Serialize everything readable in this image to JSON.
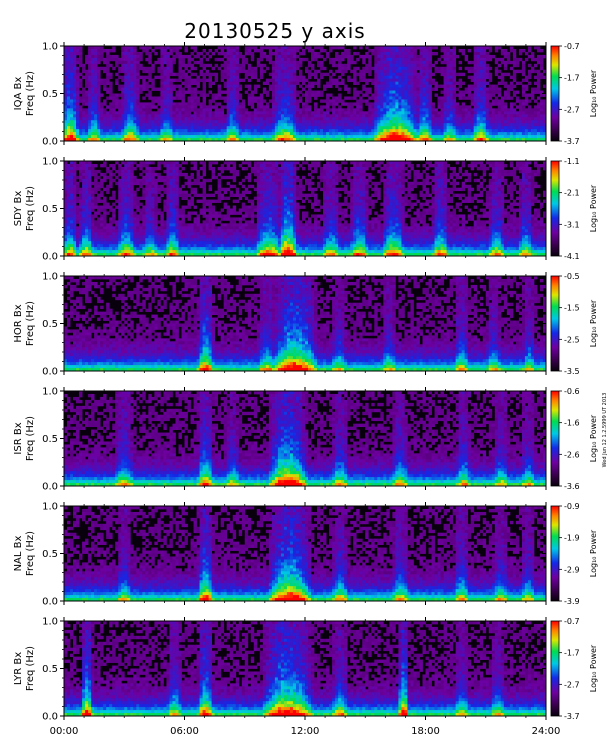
{
  "chart_data": {
    "type": "heatmap",
    "title": "20130525 y axis",
    "xlabel": "",
    "x_ticks": [
      "00:00",
      "06:00",
      "12:00",
      "18:00",
      "24:00"
    ],
    "x_range_hours": [
      0,
      24
    ],
    "freq_range_hz": [
      0.0,
      1.0
    ],
    "y_ticks": [
      "0.0",
      "0.5",
      "1.0"
    ],
    "colorbar_label": "Log₁₀ Power",
    "colormap": "rainbow (black-purple-blue-cyan-green-yellow-red)",
    "side_note": "Wed Jun 12 1.2.5999 UT 2013",
    "panels": [
      {
        "station": "IQA",
        "ylabel_1": "IQA Bx",
        "ylabel_2": "Freq (Hz)",
        "colorbar_ticks": [
          "-0.7",
          "-1.7",
          "-2.7",
          "-3.7"
        ],
        "active_intervals": [
          {
            "start": 0.0,
            "end": 0.6,
            "peak": 0.9
          },
          {
            "start": 1.3,
            "end": 1.7,
            "peak": 0.5
          },
          {
            "start": 3.0,
            "end": 3.6,
            "peak": 0.6
          },
          {
            "start": 4.9,
            "end": 5.3,
            "peak": 0.4
          },
          {
            "start": 8.2,
            "end": 8.6,
            "peak": 0.5
          },
          {
            "start": 10.5,
            "end": 11.5,
            "peak": 0.6
          },
          {
            "start": 15.5,
            "end": 17.5,
            "peak": 1.0
          },
          {
            "start": 17.7,
            "end": 18.2,
            "peak": 0.6
          },
          {
            "start": 19.0,
            "end": 19.4,
            "peak": 0.4
          },
          {
            "start": 20.5,
            "end": 21.0,
            "peak": 0.6
          }
        ]
      },
      {
        "station": "SDY",
        "ylabel_1": "SDY Bx",
        "ylabel_2": "Freq (Hz)",
        "colorbar_ticks": [
          "-1.1",
          "-2.1",
          "-3.1",
          "-4.1"
        ],
        "active_intervals": [
          {
            "start": 0.1,
            "end": 0.5,
            "peak": 0.6
          },
          {
            "start": 0.9,
            "end": 1.3,
            "peak": 0.6
          },
          {
            "start": 2.8,
            "end": 3.4,
            "peak": 0.6
          },
          {
            "start": 4.1,
            "end": 4.5,
            "peak": 0.4
          },
          {
            "start": 5.2,
            "end": 5.6,
            "peak": 0.6
          },
          {
            "start": 9.7,
            "end": 10.7,
            "peak": 0.7
          },
          {
            "start": 10.8,
            "end": 11.5,
            "peak": 1.0
          },
          {
            "start": 13.0,
            "end": 13.6,
            "peak": 0.5
          },
          {
            "start": 14.4,
            "end": 15.0,
            "peak": 0.6
          },
          {
            "start": 16.0,
            "end": 16.8,
            "peak": 0.7
          },
          {
            "start": 18.5,
            "end": 19.0,
            "peak": 0.6
          },
          {
            "start": 21.3,
            "end": 21.8,
            "peak": 0.5
          },
          {
            "start": 22.8,
            "end": 23.2,
            "peak": 0.5
          }
        ]
      },
      {
        "station": "HOR",
        "ylabel_1": "HOR Bx",
        "ylabel_2": "Freq (Hz)",
        "colorbar_ticks": [
          "-0.5",
          "-1.5",
          "-2.5",
          "-3.5"
        ],
        "active_intervals": [
          {
            "start": 6.8,
            "end": 7.3,
            "peak": 0.8
          },
          {
            "start": 9.8,
            "end": 10.4,
            "peak": 0.5
          },
          {
            "start": 10.5,
            "end": 12.5,
            "peak": 1.0
          },
          {
            "start": 13.5,
            "end": 13.9,
            "peak": 0.4
          },
          {
            "start": 16.0,
            "end": 16.4,
            "peak": 0.4
          },
          {
            "start": 19.6,
            "end": 20.0,
            "peak": 0.5
          },
          {
            "start": 21.2,
            "end": 21.6,
            "peak": 0.4
          },
          {
            "start": 23.0,
            "end": 23.3,
            "peak": 0.4
          }
        ]
      },
      {
        "station": "ISR",
        "ylabel_1": "ISR Bx",
        "ylabel_2": "Freq (Hz)",
        "colorbar_ticks": [
          "-0.6",
          "-1.6",
          "-2.6",
          "-3.6"
        ],
        "active_intervals": [
          {
            "start": 2.7,
            "end": 3.3,
            "peak": 0.5
          },
          {
            "start": 6.8,
            "end": 7.3,
            "peak": 0.7
          },
          {
            "start": 8.2,
            "end": 8.6,
            "peak": 0.4
          },
          {
            "start": 10.3,
            "end": 12.0,
            "peak": 1.0
          },
          {
            "start": 13.5,
            "end": 14.0,
            "peak": 0.5
          },
          {
            "start": 16.5,
            "end": 17.0,
            "peak": 0.5
          },
          {
            "start": 19.7,
            "end": 20.1,
            "peak": 0.5
          },
          {
            "start": 21.5,
            "end": 22.0,
            "peak": 0.4
          },
          {
            "start": 22.9,
            "end": 23.3,
            "peak": 0.4
          }
        ]
      },
      {
        "station": "NAL",
        "ylabel_1": "NAL Bx",
        "ylabel_2": "Freq (Hz)",
        "colorbar_ticks": [
          "-0.9",
          "-1.9",
          "-2.9",
          "-3.9"
        ],
        "active_intervals": [
          {
            "start": 2.8,
            "end": 3.2,
            "peak": 0.4
          },
          {
            "start": 6.8,
            "end": 7.3,
            "peak": 0.8
          },
          {
            "start": 10.3,
            "end": 12.2,
            "peak": 1.0
          },
          {
            "start": 13.5,
            "end": 14.0,
            "peak": 0.5
          },
          {
            "start": 16.5,
            "end": 17.0,
            "peak": 0.5
          },
          {
            "start": 19.6,
            "end": 20.0,
            "peak": 0.5
          },
          {
            "start": 21.5,
            "end": 22.0,
            "peak": 0.4
          },
          {
            "start": 22.9,
            "end": 23.3,
            "peak": 0.4
          }
        ]
      },
      {
        "station": "LYR",
        "ylabel_1": "LYR Bx",
        "ylabel_2": "Freq (Hz)",
        "colorbar_ticks": [
          "-0.7",
          "-1.7",
          "-2.7",
          "-3.7"
        ],
        "active_intervals": [
          {
            "start": 1.0,
            "end": 1.3,
            "peak": 0.9
          },
          {
            "start": 5.3,
            "end": 5.7,
            "peak": 0.5
          },
          {
            "start": 6.8,
            "end": 7.3,
            "peak": 0.8
          },
          {
            "start": 10.0,
            "end": 12.3,
            "peak": 1.0
          },
          {
            "start": 13.5,
            "end": 14.0,
            "peak": 0.5
          },
          {
            "start": 16.8,
            "end": 17.0,
            "peak": 1.0
          },
          {
            "start": 19.6,
            "end": 20.0,
            "peak": 0.4
          },
          {
            "start": 21.4,
            "end": 21.8,
            "peak": 0.4
          }
        ]
      }
    ]
  }
}
